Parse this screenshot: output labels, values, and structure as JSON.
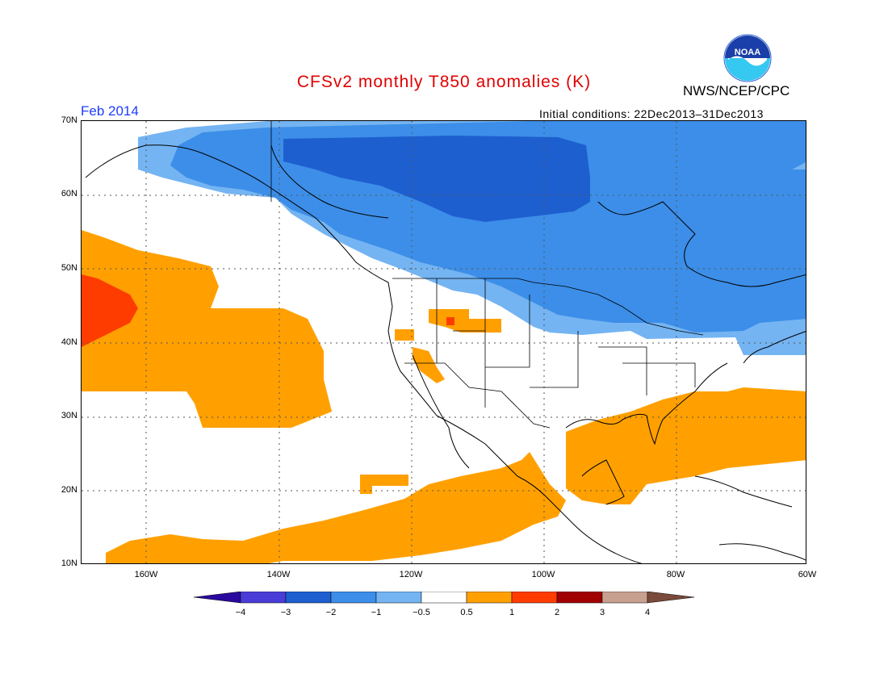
{
  "title": "CFSv2 monthly T850 anomalies (K)",
  "agency": "NWS/NCEP/CPC",
  "logo_text": "NOAA",
  "month": "Feb 2014",
  "initial_conditions": "Initial conditions: 22Dec2013–31Dec2013",
  "lat_labels": [
    "70N",
    "60N",
    "50N",
    "40N",
    "30N",
    "20N",
    "10N"
  ],
  "lon_labels": [
    "160W",
    "140W",
    "120W",
    "100W",
    "80W",
    "60W"
  ],
  "colorbar": {
    "labels": [
      "−4",
      "−3",
      "−2",
      "−1",
      "−0.5",
      "0.5",
      "1",
      "2",
      "3",
      "4"
    ],
    "colors": [
      "#2a0a9e",
      "#4a3cd6",
      "#1e5fd0",
      "#3c8ee8",
      "#74b4f2",
      "#ffffff",
      "#ffa000",
      "#ff3c00",
      "#a00000",
      "#c8a090",
      "#7a4a3a"
    ]
  },
  "anomaly_colors": {
    "cold_1": "#74b4f2",
    "cold_2": "#3c8ee8",
    "cold_3": "#1e5fd0",
    "warm_1": "#ffa000",
    "warm_2": "#ff3c00"
  }
}
